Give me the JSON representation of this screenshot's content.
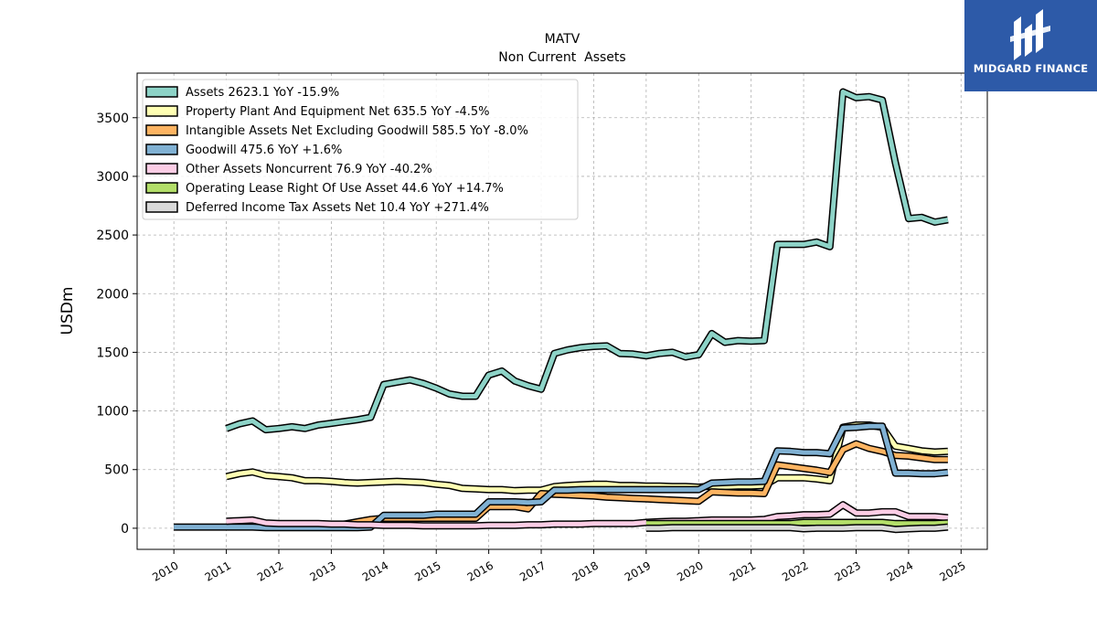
{
  "brand": {
    "name": "MIDGARD FINANCE",
    "bg_color": "#2d5aa8"
  },
  "chart_data": {
    "type": "line",
    "title": "MATV",
    "subtitle": "Non Current  Assets",
    "ylabel": "USDm",
    "xlabel": "",
    "xlim": [
      2009.3,
      2025.5
    ],
    "ylim": [
      -180,
      3880
    ],
    "yticks": [
      0,
      500,
      1000,
      1500,
      2000,
      2500,
      3000,
      3500
    ],
    "xticks": [
      "2010",
      "2011",
      "2012",
      "2013",
      "2014",
      "2015",
      "2016",
      "2017",
      "2018",
      "2019",
      "2020",
      "2021",
      "2022",
      "2023",
      "2024",
      "2025"
    ],
    "grid": true,
    "legend_position": "top-left",
    "series": [
      {
        "name": "Assets  2623.1 YoY -15.9%",
        "color": "#8dd3c7",
        "x": [
          2011.0,
          2011.25,
          2011.5,
          2011.75,
          2012.0,
          2012.25,
          2012.5,
          2012.75,
          2013.0,
          2013.25,
          2013.5,
          2013.75,
          2014.0,
          2014.25,
          2014.5,
          2014.75,
          2015.0,
          2015.25,
          2015.5,
          2015.75,
          2016.0,
          2016.25,
          2016.5,
          2016.75,
          2017.0,
          2017.25,
          2017.5,
          2017.75,
          2018.0,
          2018.25,
          2018.5,
          2018.75,
          2019.0,
          2019.25,
          2019.5,
          2019.75,
          2020.0,
          2020.25,
          2020.5,
          2020.75,
          2021.0,
          2021.25,
          2021.5,
          2021.75,
          2022.0,
          2022.25,
          2022.5,
          2022.75,
          2023.0,
          2023.25,
          2023.5,
          2023.75,
          2024.0,
          2024.25,
          2024.5,
          2024.75
        ],
        "y": [
          850,
          890,
          915,
          840,
          850,
          865,
          850,
          880,
          895,
          910,
          925,
          945,
          1225,
          1245,
          1265,
          1235,
          1195,
          1145,
          1125,
          1125,
          1305,
          1340,
          1255,
          1215,
          1185,
          1490,
          1520,
          1540,
          1550,
          1555,
          1490,
          1485,
          1470,
          1490,
          1500,
          1460,
          1480,
          1660,
          1585,
          1600,
          1595,
          1600,
          2420,
          2420,
          2420,
          2440,
          2400,
          3720,
          3670,
          3680,
          3650,
          3115,
          2640,
          2650,
          2610,
          2630
        ]
      },
      {
        "name": "Property Plant And Equipment Net  635.5 YoY -4.5%",
        "color": "#ffffb3",
        "x": [
          2011.0,
          2011.25,
          2011.5,
          2011.75,
          2012.0,
          2012.25,
          2012.5,
          2012.75,
          2013.0,
          2013.25,
          2013.5,
          2013.75,
          2014.0,
          2014.25,
          2014.5,
          2014.75,
          2015.0,
          2015.25,
          2015.5,
          2015.75,
          2016.0,
          2016.25,
          2016.5,
          2016.75,
          2017.0,
          2017.25,
          2017.5,
          2017.75,
          2018.0,
          2018.25,
          2018.5,
          2018.75,
          2019.0,
          2019.25,
          2019.5,
          2019.75,
          2020.0,
          2020.25,
          2020.5,
          2020.75,
          2021.0,
          2021.25,
          2021.5,
          2021.75,
          2022.0,
          2022.25,
          2022.5,
          2022.75,
          2023.0,
          2023.25,
          2023.5,
          2023.75,
          2024.0,
          2024.25,
          2024.5,
          2024.75
        ],
        "y": [
          440,
          465,
          480,
          450,
          440,
          430,
          405,
          405,
          400,
          390,
          385,
          390,
          395,
          400,
          395,
          390,
          375,
          365,
          340,
          335,
          330,
          330,
          320,
          325,
          325,
          355,
          365,
          370,
          375,
          375,
          365,
          365,
          360,
          360,
          355,
          355,
          350,
          360,
          355,
          360,
          360,
          365,
          430,
          430,
          430,
          420,
          405,
          860,
          880,
          880,
          860,
          700,
          680,
          660,
          650,
          655
        ]
      },
      {
        "name": "Intangible Assets Net Excluding Goodwill  585.5 YoY -8.0%",
        "color": "#fdb462",
        "x": [
          2013.0,
          2013.25,
          2013.5,
          2013.75,
          2014.0,
          2014.25,
          2014.5,
          2014.75,
          2015.0,
          2015.25,
          2015.5,
          2015.75,
          2016.0,
          2016.25,
          2016.5,
          2016.75,
          2017.0,
          2017.25,
          2017.5,
          2017.75,
          2018.0,
          2018.25,
          2018.5,
          2018.75,
          2019.0,
          2019.25,
          2019.5,
          2019.75,
          2020.0,
          2020.25,
          2020.5,
          2020.75,
          2021.0,
          2021.25,
          2021.5,
          2021.75,
          2022.0,
          2022.25,
          2022.5,
          2022.75,
          2023.0,
          2023.25,
          2023.5,
          2023.75,
          2024.0,
          2024.25,
          2024.5,
          2024.75
        ],
        "y": [
          25,
          35,
          55,
          75,
          85,
          85,
          85,
          85,
          85,
          85,
          85,
          85,
          185,
          185,
          185,
          165,
          295,
          290,
          285,
          280,
          275,
          265,
          260,
          255,
          250,
          245,
          240,
          235,
          230,
          310,
          305,
          300,
          300,
          295,
          540,
          525,
          510,
          495,
          475,
          670,
          720,
          680,
          655,
          620,
          615,
          600,
          585,
          585
        ]
      },
      {
        "name": "Goodwill  475.6 YoY +1.6%",
        "color": "#80b1d3",
        "x": [
          2010.0,
          2010.25,
          2010.5,
          2010.75,
          2011.0,
          2011.25,
          2011.5,
          2011.75,
          2012.0,
          2012.25,
          2012.5,
          2012.75,
          2013.0,
          2013.25,
          2013.5,
          2013.75,
          2014.0,
          2014.25,
          2014.5,
          2014.75,
          2015.0,
          2015.25,
          2015.5,
          2015.75,
          2016.0,
          2016.25,
          2016.5,
          2016.75,
          2017.0,
          2017.25,
          2017.5,
          2017.75,
          2018.0,
          2018.25,
          2018.5,
          2018.75,
          2019.0,
          2019.25,
          2019.5,
          2019.75,
          2020.0,
          2020.25,
          2020.5,
          2020.75,
          2021.0,
          2021.25,
          2021.5,
          2021.75,
          2022.0,
          2022.25,
          2022.5,
          2022.75,
          2023.0,
          2023.25,
          2023.5,
          2023.75,
          2024.0,
          2024.25,
          2024.5,
          2024.75
        ],
        "y": [
          10,
          10,
          10,
          10,
          10,
          10,
          10,
          5,
          5,
          5,
          5,
          5,
          5,
          5,
          5,
          10,
          110,
          110,
          110,
          110,
          120,
          120,
          120,
          120,
          225,
          225,
          225,
          220,
          225,
          325,
          325,
          330,
          330,
          330,
          330,
          330,
          330,
          330,
          330,
          330,
          330,
          385,
          390,
          395,
          395,
          400,
          660,
          655,
          645,
          645,
          635,
          855,
          860,
          870,
          870,
          470,
          470,
          465,
          465,
          475
        ]
      },
      {
        "name": "Other Assets Noncurrent  76.9 YoY -40.2%",
        "color": "#fccde5",
        "x": [
          2011.0,
          2011.25,
          2011.5,
          2011.75,
          2012.0,
          2012.25,
          2012.5,
          2012.75,
          2013.0,
          2013.25,
          2013.5,
          2013.75,
          2014.0,
          2014.25,
          2014.5,
          2014.75,
          2015.0,
          2015.25,
          2015.5,
          2015.75,
          2016.0,
          2016.25,
          2016.5,
          2016.75,
          2017.0,
          2017.25,
          2017.5,
          2017.75,
          2018.0,
          2018.25,
          2018.5,
          2018.75,
          2019.0,
          2019.25,
          2019.5,
          2019.75,
          2020.0,
          2020.25,
          2020.5,
          2020.75,
          2021.0,
          2021.25,
          2021.5,
          2021.75,
          2022.0,
          2022.25,
          2022.5,
          2022.75,
          2023.0,
          2023.25,
          2023.5,
          2023.75,
          2024.0,
          2024.25,
          2024.5,
          2024.75
        ],
        "y": [
          60,
          65,
          70,
          45,
          40,
          40,
          40,
          40,
          35,
          35,
          30,
          30,
          25,
          25,
          25,
          20,
          20,
          20,
          20,
          20,
          25,
          25,
          25,
          30,
          30,
          35,
          35,
          35,
          40,
          40,
          40,
          40,
          50,
          55,
          60,
          60,
          65,
          70,
          70,
          70,
          70,
          75,
          100,
          105,
          115,
          115,
          120,
          200,
          130,
          130,
          140,
          140,
          100,
          100,
          100,
          90
        ]
      },
      {
        "name": "Operating Lease Right Of Use Asset  44.6 YoY +14.7%",
        "color": "#b3de69",
        "x": [
          2019.0,
          2019.25,
          2019.5,
          2019.75,
          2020.0,
          2020.25,
          2020.5,
          2020.75,
          2021.0,
          2021.25,
          2021.5,
          2021.75,
          2022.0,
          2022.25,
          2022.5,
          2022.75,
          2023.0,
          2023.25,
          2023.5,
          2023.75,
          2024.0,
          2024.25,
          2024.5,
          2024.75
        ],
        "y": [
          40,
          40,
          40,
          40,
          40,
          40,
          40,
          40,
          40,
          40,
          40,
          40,
          50,
          50,
          50,
          50,
          50,
          50,
          50,
          40,
          40,
          40,
          40,
          45
        ]
      },
      {
        "name": "Deferred Income Tax Assets Net  10.4 YoY +271.4%",
        "color": "#d9d9d9",
        "x": [
          2019.0,
          2019.25,
          2019.5,
          2019.75,
          2020.0,
          2020.25,
          2020.5,
          2020.75,
          2021.0,
          2021.25,
          2021.5,
          2021.75,
          2022.0,
          2022.25,
          2022.5,
          2022.75,
          2023.0,
          2023.25,
          2023.5,
          2023.75,
          2024.0,
          2024.25,
          2024.5,
          2024.75
        ],
        "y": [
          0,
          0,
          5,
          5,
          5,
          5,
          5,
          5,
          5,
          5,
          5,
          5,
          -5,
          0,
          0,
          0,
          5,
          5,
          5,
          -10,
          -5,
          0,
          0,
          10
        ]
      }
    ]
  }
}
